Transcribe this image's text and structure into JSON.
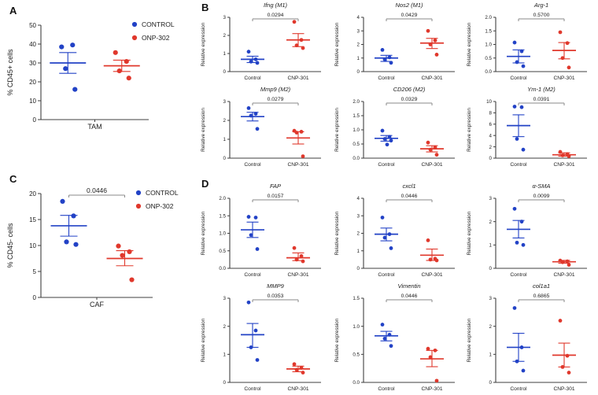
{
  "panels": {
    "a": "A",
    "b": "B",
    "c": "C",
    "d": "D"
  },
  "colors": {
    "control": "#2242c6",
    "treated": "#e0382c",
    "axis": "#3f3f3f",
    "text": "#1b1b1b",
    "bracket": "#8a8a8a"
  },
  "legend_labels": {
    "control": "CONTROL",
    "treated": "ONP-302"
  },
  "chart_data": [
    {
      "id": "A",
      "type": "scatter",
      "size": "big",
      "title": "",
      "p_value": null,
      "ylabel": "% CD45+ cells",
      "ylim": [
        0,
        50
      ],
      "yticks": [
        "0",
        "10",
        "20",
        "30",
        "40",
        "50"
      ],
      "categories": [
        "TAM"
      ],
      "legend": [
        "CONTROL",
        "ONP-302"
      ],
      "groups": [
        {
          "name": "CONTROL",
          "color": "control",
          "points": [
            38.5,
            39.5,
            27,
            16
          ],
          "mean": 30,
          "err_low": 24.5,
          "err_high": 35.5
        },
        {
          "name": "ONP-302",
          "color": "treated",
          "points": [
            35.5,
            30.8,
            25.8,
            22
          ],
          "mean": 28.5,
          "err_low": 25.5,
          "err_high": 31.5
        }
      ]
    },
    {
      "id": "B1",
      "type": "scatter",
      "size": "small",
      "title": "Ifng (M1)",
      "p_value": "0.0294",
      "ylabel": "Relative expression",
      "ylim": [
        0,
        3
      ],
      "yticks": [
        "0",
        "1",
        "2",
        "3"
      ],
      "categories": [
        "Control",
        "CNP-301"
      ],
      "legend": null,
      "groups": [
        {
          "name": "Control",
          "color": "control",
          "points": [
            1.1,
            0.68,
            0.55,
            0.48
          ],
          "mean": 0.68,
          "err_low": 0.5,
          "err_high": 0.85
        },
        {
          "name": "CNP-301",
          "color": "treated",
          "points": [
            2.75,
            1.75,
            1.45,
            1.3
          ],
          "mean": 1.75,
          "err_low": 1.38,
          "err_high": 2.1
        }
      ]
    },
    {
      "id": "B2",
      "type": "scatter",
      "size": "small",
      "title": "Nos2 (M1)",
      "p_value": "0.0429",
      "ylabel": "Relative expression",
      "ylim": [
        0,
        4
      ],
      "yticks": [
        "0",
        "1",
        "2",
        "3",
        "4"
      ],
      "categories": [
        "Control",
        "CNP-301"
      ],
      "legend": null,
      "groups": [
        {
          "name": "Control",
          "color": "control",
          "points": [
            1.6,
            1.05,
            0.9,
            0.65
          ],
          "mean": 1.0,
          "err_low": 0.75,
          "err_high": 1.2
        },
        {
          "name": "CNP-301",
          "color": "treated",
          "points": [
            3.0,
            2.3,
            2.0,
            1.25
          ],
          "mean": 2.1,
          "err_low": 1.7,
          "err_high": 2.45
        }
      ]
    },
    {
      "id": "B3",
      "type": "scatter",
      "size": "small",
      "title": "Arg-1",
      "p_value": "0.5700",
      "ylabel": "Relative expression",
      "ylim": [
        0,
        2
      ],
      "yticks": [
        "0.0",
        "0.5",
        "1.0",
        "1.5",
        "2.0"
      ],
      "categories": [
        "Control",
        "CNP-301"
      ],
      "legend": null,
      "groups": [
        {
          "name": "Control",
          "color": "control",
          "points": [
            1.07,
            0.75,
            0.35,
            0.2
          ],
          "mean": 0.56,
          "err_low": 0.32,
          "err_high": 0.8
        },
        {
          "name": "CNP-301",
          "color": "treated",
          "points": [
            1.45,
            1.05,
            0.5,
            0.15
          ],
          "mean": 0.78,
          "err_low": 0.47,
          "err_high": 1.07
        }
      ]
    },
    {
      "id": "B4",
      "type": "scatter",
      "size": "small",
      "title": "Mmp9 (M2)",
      "p_value": "0.0279",
      "ylabel": "Relative expression",
      "ylim": [
        0,
        3
      ],
      "yticks": [
        "0",
        "1",
        "2",
        "3"
      ],
      "categories": [
        "Control",
        "CNP-301"
      ],
      "legend": null,
      "groups": [
        {
          "name": "Control",
          "color": "control",
          "points": [
            2.65,
            2.35,
            2.25,
            1.55
          ],
          "mean": 2.2,
          "err_low": 1.97,
          "err_high": 2.43
        },
        {
          "name": "CNP-301",
          "color": "treated",
          "points": [
            1.45,
            1.4,
            1.35,
            0.1
          ],
          "mean": 1.07,
          "err_low": 0.75,
          "err_high": 1.4
        }
      ]
    },
    {
      "id": "B5",
      "type": "scatter",
      "size": "small",
      "title": "CD206 (M2)",
      "p_value": "0.0329",
      "ylabel": "Relative expression",
      "ylim": [
        0,
        2
      ],
      "yticks": [
        "0.0",
        "0.5",
        "1.0",
        "1.5",
        "2.0"
      ],
      "categories": [
        "Control",
        "CNP-301"
      ],
      "legend": null,
      "groups": [
        {
          "name": "Control",
          "color": "control",
          "points": [
            0.97,
            0.75,
            0.68,
            0.62,
            0.48
          ],
          "mean": 0.7,
          "err_low": 0.6,
          "err_high": 0.8
        },
        {
          "name": "CNP-301",
          "color": "treated",
          "points": [
            0.55,
            0.38,
            0.3,
            0.12
          ],
          "mean": 0.33,
          "err_low": 0.22,
          "err_high": 0.44
        }
      ]
    },
    {
      "id": "B6",
      "type": "scatter",
      "size": "small",
      "title": "Ym-1 (M2)",
      "p_value": "0.0391",
      "ylabel": "Relative expression",
      "ylim": [
        0,
        10
      ],
      "yticks": [
        "0",
        "2",
        "4",
        "6",
        "8",
        "10"
      ],
      "categories": [
        "Control",
        "CNP-301"
      ],
      "legend": null,
      "groups": [
        {
          "name": "Control",
          "color": "control",
          "points": [
            9.1,
            9.0,
            3.4,
            1.5
          ],
          "mean": 5.75,
          "err_low": 3.8,
          "err_high": 7.65
        },
        {
          "name": "CNP-301",
          "color": "treated",
          "points": [
            1.1,
            0.7,
            0.5,
            0.35
          ],
          "mean": 0.6,
          "err_low": 0.35,
          "err_high": 0.95
        }
      ]
    },
    {
      "id": "C",
      "type": "scatter",
      "size": "big",
      "title": "",
      "p_value": "0.0446",
      "ylabel": "% CD45- cells",
      "ylim": [
        0,
        20
      ],
      "yticks": [
        "0",
        "5",
        "10",
        "15",
        "20"
      ],
      "categories": [
        "CAF"
      ],
      "legend": [
        "CONTROL",
        "ONP-302"
      ],
      "groups": [
        {
          "name": "CONTROL",
          "color": "control",
          "points": [
            18.5,
            15.7,
            10.7,
            10.2
          ],
          "mean": 13.8,
          "err_low": 11.8,
          "err_high": 15.8
        },
        {
          "name": "ONP-302",
          "color": "treated",
          "points": [
            9.9,
            8.8,
            8.1,
            3.4
          ],
          "mean": 7.5,
          "err_low": 6.1,
          "err_high": 9.0
        }
      ]
    },
    {
      "id": "D1",
      "type": "scatter",
      "size": "small",
      "title": "FAP",
      "p_value": "0.0157",
      "ylabel": "Relative expression",
      "ylim": [
        0,
        2
      ],
      "yticks": [
        "0.0",
        "0.5",
        "1.0",
        "1.5",
        "2.0"
      ],
      "categories": [
        "Control",
        "CNP-301"
      ],
      "legend": null,
      "groups": [
        {
          "name": "Control",
          "color": "control",
          "points": [
            1.47,
            1.45,
            0.95,
            0.55
          ],
          "mean": 1.1,
          "err_low": 0.88,
          "err_high": 1.32
        },
        {
          "name": "CNP-301",
          "color": "treated",
          "points": [
            0.58,
            0.35,
            0.25,
            0.2
          ],
          "mean": 0.3,
          "err_low": 0.22,
          "err_high": 0.44
        }
      ]
    },
    {
      "id": "D2",
      "type": "scatter",
      "size": "small",
      "title": "cxcl1",
      "p_value": "0.0446",
      "ylabel": "Relative expression",
      "ylim": [
        0,
        4
      ],
      "yticks": [
        "0",
        "1",
        "2",
        "3",
        "4"
      ],
      "categories": [
        "Control",
        "CNP-301"
      ],
      "legend": null,
      "groups": [
        {
          "name": "Control",
          "color": "control",
          "points": [
            2.9,
            1.95,
            1.75,
            1.15
          ],
          "mean": 1.95,
          "err_low": 1.57,
          "err_high": 2.3
        },
        {
          "name": "CNP-301",
          "color": "treated",
          "points": [
            1.6,
            0.55,
            0.5,
            0.45
          ],
          "mean": 0.75,
          "err_low": 0.45,
          "err_high": 1.1
        }
      ]
    },
    {
      "id": "D3",
      "type": "scatter",
      "size": "small",
      "title": "α-SMA",
      "p_value": "0.0099",
      "ylabel": "Relative expression",
      "ylim": [
        0,
        3
      ],
      "yticks": [
        "0",
        "1",
        "2",
        "3"
      ],
      "categories": [
        "Control",
        "CNP-301"
      ],
      "legend": null,
      "groups": [
        {
          "name": "Control",
          "color": "control",
          "points": [
            2.55,
            2.0,
            1.1,
            1.0
          ],
          "mean": 1.67,
          "err_low": 1.3,
          "err_high": 2.05
        },
        {
          "name": "CNP-301",
          "color": "treated",
          "points": [
            0.33,
            0.3,
            0.26,
            0.15
          ],
          "mean": 0.28,
          "err_low": 0.22,
          "err_high": 0.34
        }
      ]
    },
    {
      "id": "D4",
      "type": "scatter",
      "size": "small",
      "title": "MMP9",
      "p_value": "0.0353",
      "ylabel": "Relative expression",
      "ylim": [
        0,
        3
      ],
      "yticks": [
        "0",
        "1",
        "2",
        "3"
      ],
      "categories": [
        "Control",
        "CNP-301"
      ],
      "legend": null,
      "groups": [
        {
          "name": "Control",
          "color": "control",
          "points": [
            2.85,
            1.85,
            1.25,
            0.8
          ],
          "mean": 1.7,
          "err_low": 1.25,
          "err_high": 2.1
        },
        {
          "name": "CNP-301",
          "color": "treated",
          "points": [
            0.65,
            0.52,
            0.45,
            0.35
          ],
          "mean": 0.48,
          "err_low": 0.38,
          "err_high": 0.58
        }
      ]
    },
    {
      "id": "D5",
      "type": "scatter",
      "size": "small",
      "title": "Vimentin",
      "p_value": "0.0446",
      "ylabel": "Relative expression",
      "ylim": [
        0,
        1.5
      ],
      "yticks": [
        "0.0",
        "0.5",
        "1.0",
        "1.5"
      ],
      "categories": [
        "Control",
        "CNP-301"
      ],
      "legend": null,
      "groups": [
        {
          "name": "Control",
          "color": "control",
          "points": [
            1.03,
            0.85,
            0.78,
            0.65
          ],
          "mean": 0.83,
          "err_low": 0.74,
          "err_high": 0.91
        },
        {
          "name": "CNP-301",
          "color": "treated",
          "points": [
            0.6,
            0.57,
            0.45,
            0.03
          ],
          "mean": 0.42,
          "err_low": 0.28,
          "err_high": 0.57
        }
      ]
    },
    {
      "id": "D6",
      "type": "scatter",
      "size": "small",
      "title": "col1a1",
      "p_value": "0.6865",
      "ylabel": "Relative expression",
      "ylim": [
        0,
        3
      ],
      "yticks": [
        "0",
        "1",
        "2",
        "3"
      ],
      "categories": [
        "Control",
        "CNP-301"
      ],
      "legend": null,
      "groups": [
        {
          "name": "Control",
          "color": "control",
          "points": [
            2.65,
            1.25,
            0.75,
            0.42
          ],
          "mean": 1.25,
          "err_low": 0.75,
          "err_high": 1.75
        },
        {
          "name": "CNP-301",
          "color": "treated",
          "points": [
            2.2,
            0.95,
            0.55,
            0.35
          ],
          "mean": 0.97,
          "err_low": 0.55,
          "err_high": 1.4
        }
      ]
    }
  ]
}
